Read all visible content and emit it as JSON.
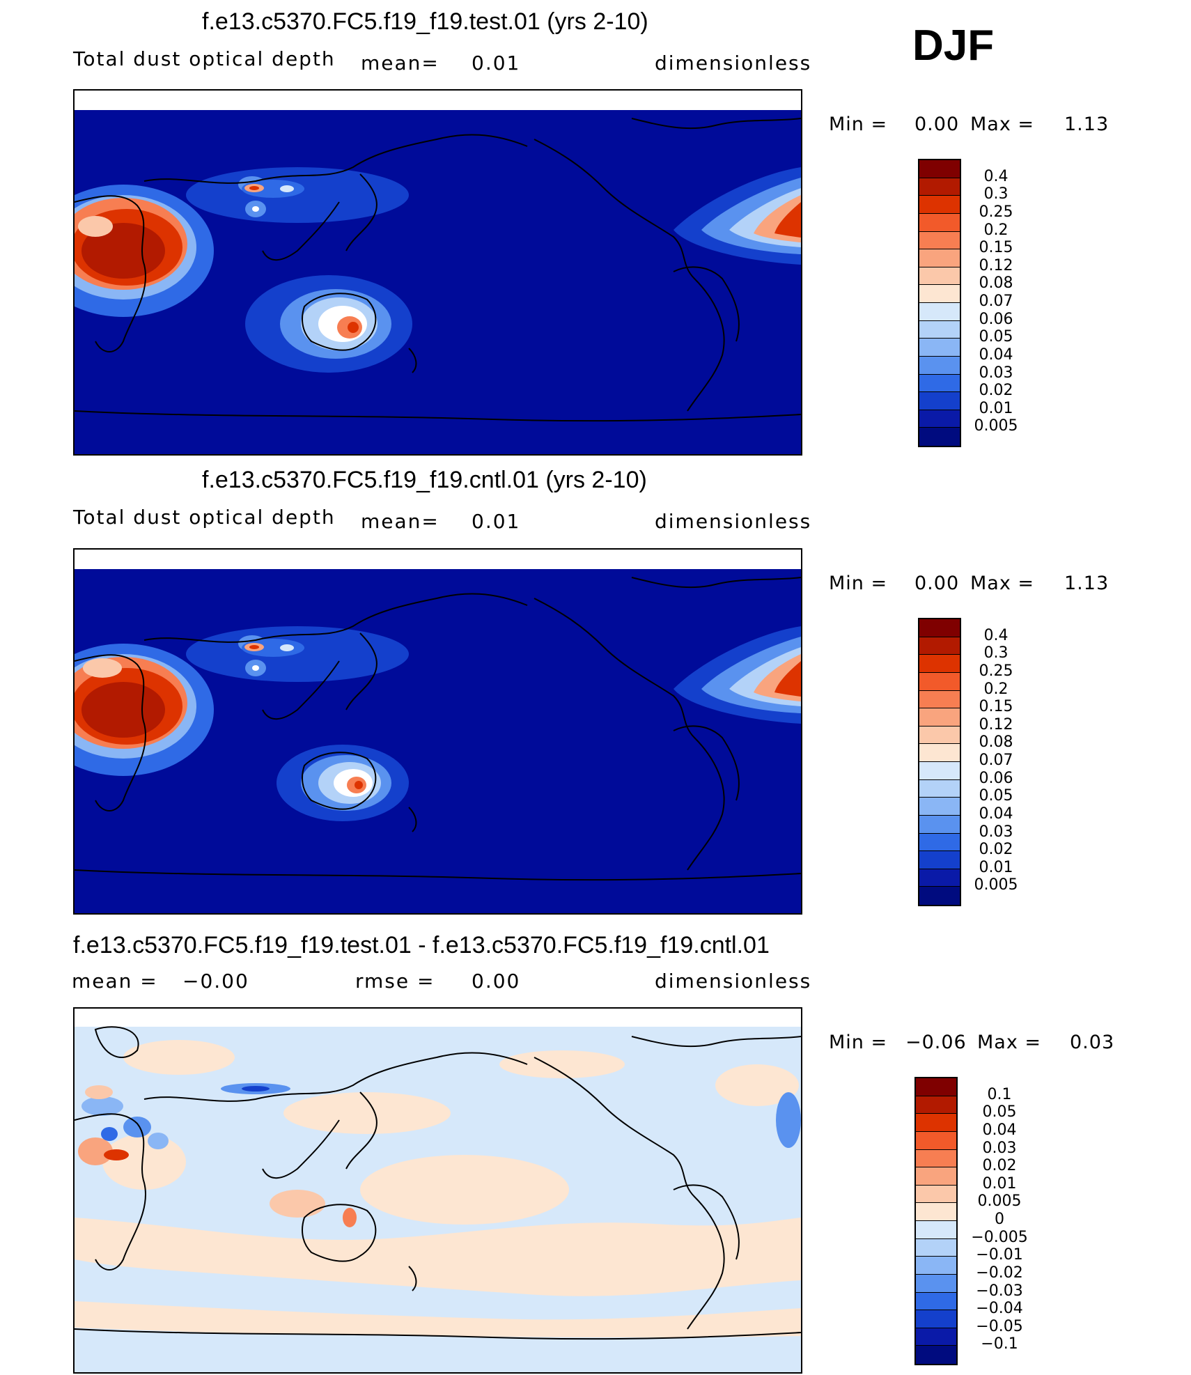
{
  "season": "DJF",
  "panels": [
    {
      "title": "f.e13.c5370.FC5.f19_f19.test.01 (yrs 2-10)",
      "left_label": "Total dust optical depth",
      "mean_label": "mean=",
      "mean_value": "0.01",
      "right_label": "dimensionless",
      "min_label": "Min =",
      "min_value": "0.00",
      "max_label": "Max =",
      "max_value": "1.13",
      "colorbar": {
        "labels": [
          "0.4",
          "0.3",
          "0.25",
          "0.2",
          "0.15",
          "0.12",
          "0.08",
          "0.07",
          "0.06",
          "0.05",
          "0.04",
          "0.03",
          "0.02",
          "0.01",
          "0.005"
        ],
        "colors": [
          "#7f0000",
          "#b21a00",
          "#dd3300",
          "#f25a2a",
          "#f77e52",
          "#f9a47e",
          "#fbc8aa",
          "#fde6d2",
          "#d6e8fa",
          "#b3d2f8",
          "#8ab6f5",
          "#5a92ef",
          "#2f6ae6",
          "#1440cc",
          "#0a1aa8",
          "#000b7f"
        ]
      }
    },
    {
      "title": "f.e13.c5370.FC5.f19_f19.cntl.01 (yrs 2-10)",
      "left_label": "Total dust optical depth",
      "mean_label": "mean=",
      "mean_value": "0.01",
      "right_label": "dimensionless",
      "min_label": "Min =",
      "min_value": "0.00",
      "max_label": "Max =",
      "max_value": "1.13",
      "colorbar": {
        "labels": [
          "0.4",
          "0.3",
          "0.25",
          "0.2",
          "0.15",
          "0.12",
          "0.08",
          "0.07",
          "0.06",
          "0.05",
          "0.04",
          "0.03",
          "0.02",
          "0.01",
          "0.005"
        ],
        "colors": [
          "#7f0000",
          "#b21a00",
          "#dd3300",
          "#f25a2a",
          "#f77e52",
          "#f9a47e",
          "#fbc8aa",
          "#fde6d2",
          "#d6e8fa",
          "#b3d2f8",
          "#8ab6f5",
          "#5a92ef",
          "#2f6ae6",
          "#1440cc",
          "#0a1aa8",
          "#000b7f"
        ]
      }
    },
    {
      "title": "f.e13.c5370.FC5.f19_f19.test.01 - f.e13.c5370.FC5.f19_f19.cntl.01",
      "left_label": "mean =",
      "left_value": "−0.00",
      "rmse_label": "rmse =",
      "rmse_value": "0.00",
      "right_label": "dimensionless",
      "min_label": "Min =",
      "min_value": "−0.06",
      "max_label": "Max =",
      "max_value": "0.03",
      "colorbar": {
        "labels": [
          "0.1",
          "0.05",
          "0.04",
          "0.03",
          "0.02",
          "0.01",
          "0.005",
          "0",
          "−0.005",
          "−0.01",
          "−0.02",
          "−0.03",
          "−0.04",
          "−0.05",
          "−0.1"
        ],
        "colors": [
          "#7f0000",
          "#b21a00",
          "#dd3300",
          "#f25a2a",
          "#f77e52",
          "#f9a47e",
          "#fbc8aa",
          "#fde6d2",
          "#d6e8fa",
          "#b3d2f8",
          "#8ab6f5",
          "#5a92ef",
          "#2f6ae6",
          "#1440cc",
          "#0a1aa8",
          "#000b7f"
        ]
      }
    }
  ],
  "colors": {
    "ocean_low": "#000b99",
    "diff_neg_small": "#d6e8fa",
    "diff_pos_small": "#fde6d2"
  }
}
